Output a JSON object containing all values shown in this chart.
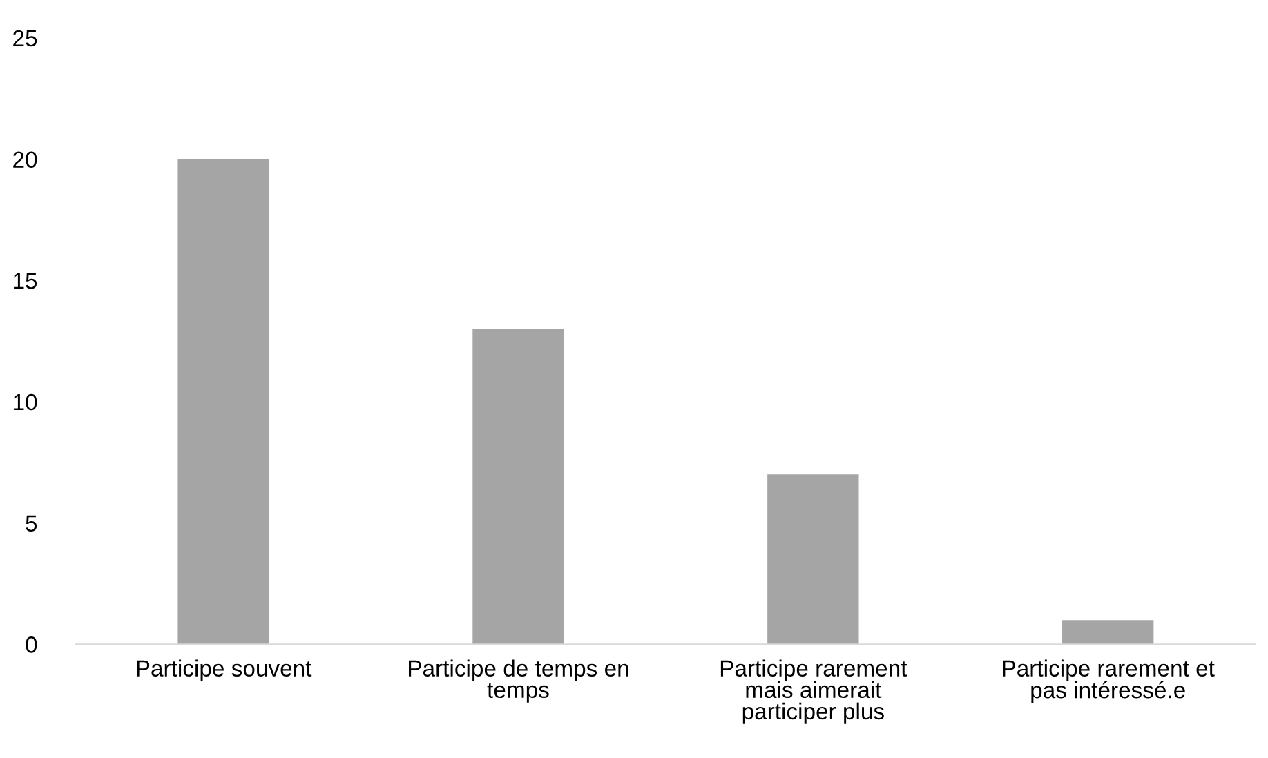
{
  "chart_data": {
    "type": "bar",
    "categories": [
      "Participe souvent",
      "Participe de temps en temps",
      "Participe rarement mais aimerait participer plus",
      "Participe rarement et pas intéressé.e"
    ],
    "values": [
      20,
      13,
      7,
      1
    ],
    "color": "#a5a5a5",
    "ylim": [
      0,
      25
    ],
    "yticks": [
      0,
      5,
      10,
      15,
      20,
      25
    ],
    "grid": false
  }
}
